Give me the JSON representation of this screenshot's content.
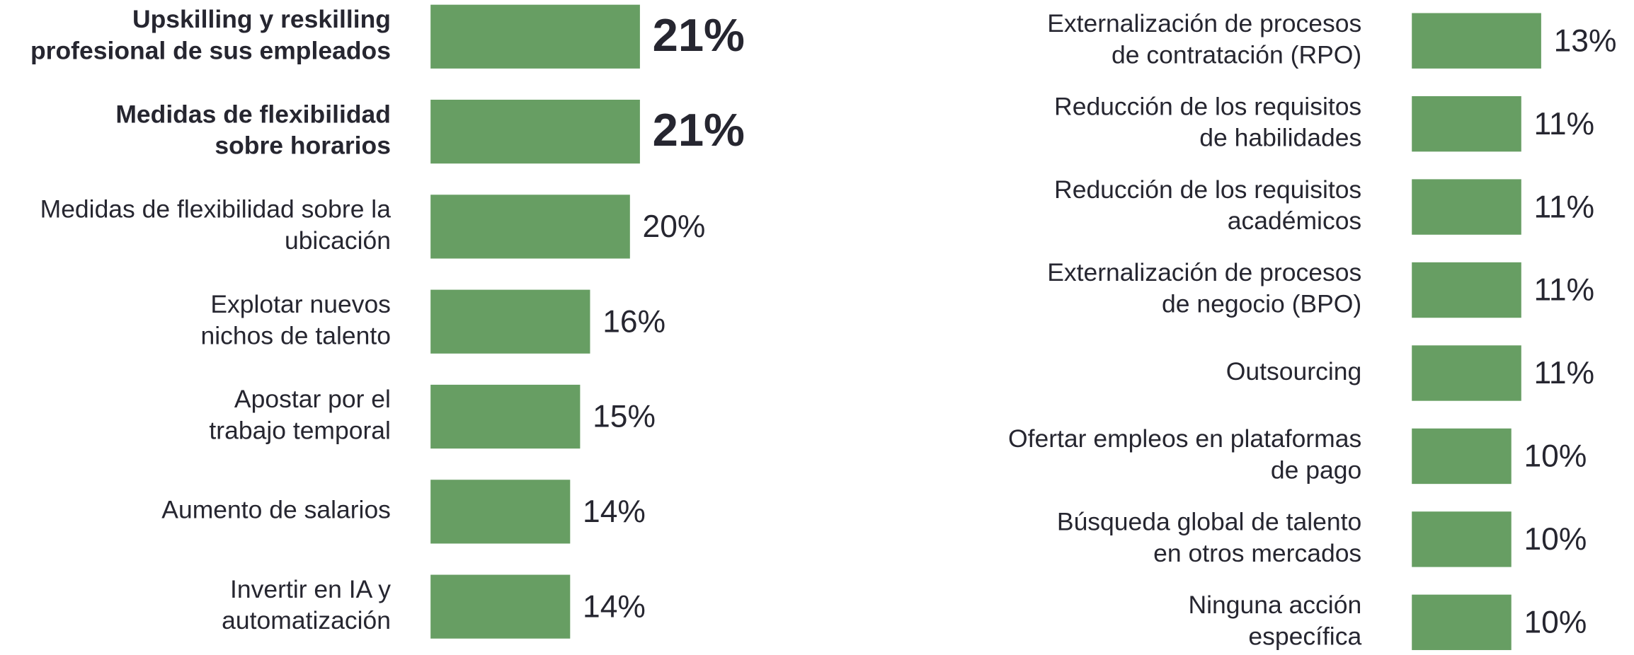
{
  "chart_data": [
    {
      "type": "bar",
      "orientation": "horizontal",
      "color": "#679e63",
      "categories": [
        [
          "Upskilling y reskilling",
          "profesional de sus empleados"
        ],
        [
          "Medidas de flexibilidad",
          "sobre horarios"
        ],
        [
          "Medidas de flexibilidad sobre la",
          "ubicación"
        ],
        [
          "Explotar nuevos",
          "nichos de talento"
        ],
        [
          "Apostar por el",
          "trabajo temporal"
        ],
        [
          "Aumento de salarios"
        ],
        [
          "Invertir en IA y",
          "automatización"
        ]
      ],
      "values": [
        21,
        21,
        20,
        16,
        15,
        14,
        14
      ],
      "value_labels": [
        "21%",
        "21%",
        "20%",
        "16%",
        "15%",
        "14%",
        "14%"
      ],
      "emphasis": [
        true,
        true,
        false,
        false,
        false,
        false,
        false
      ]
    },
    {
      "type": "bar",
      "orientation": "horizontal",
      "color": "#679e63",
      "categories": [
        [
          "Externalización de procesos",
          "de contratación (RPO)"
        ],
        [
          "Reducción de los requisitos",
          "de habilidades"
        ],
        [
          "Reducción de los requisitos",
          "académicos"
        ],
        [
          "Externalización de procesos",
          "de negocio (BPO)"
        ],
        [
          "Outsourcing"
        ],
        [
          "Ofertar empleos en plataformas",
          "de pago"
        ],
        [
          "Búsqueda global de talento",
          "en otros mercados"
        ],
        [
          "Ninguna acción",
          "específica"
        ]
      ],
      "values": [
        13,
        11,
        11,
        11,
        11,
        10,
        10,
        10
      ],
      "value_labels": [
        "13%",
        "11%",
        "11%",
        "11%",
        "11%",
        "10%",
        "10%",
        "10%"
      ],
      "emphasis": [
        false,
        false,
        false,
        false,
        false,
        false,
        false,
        false
      ]
    }
  ]
}
